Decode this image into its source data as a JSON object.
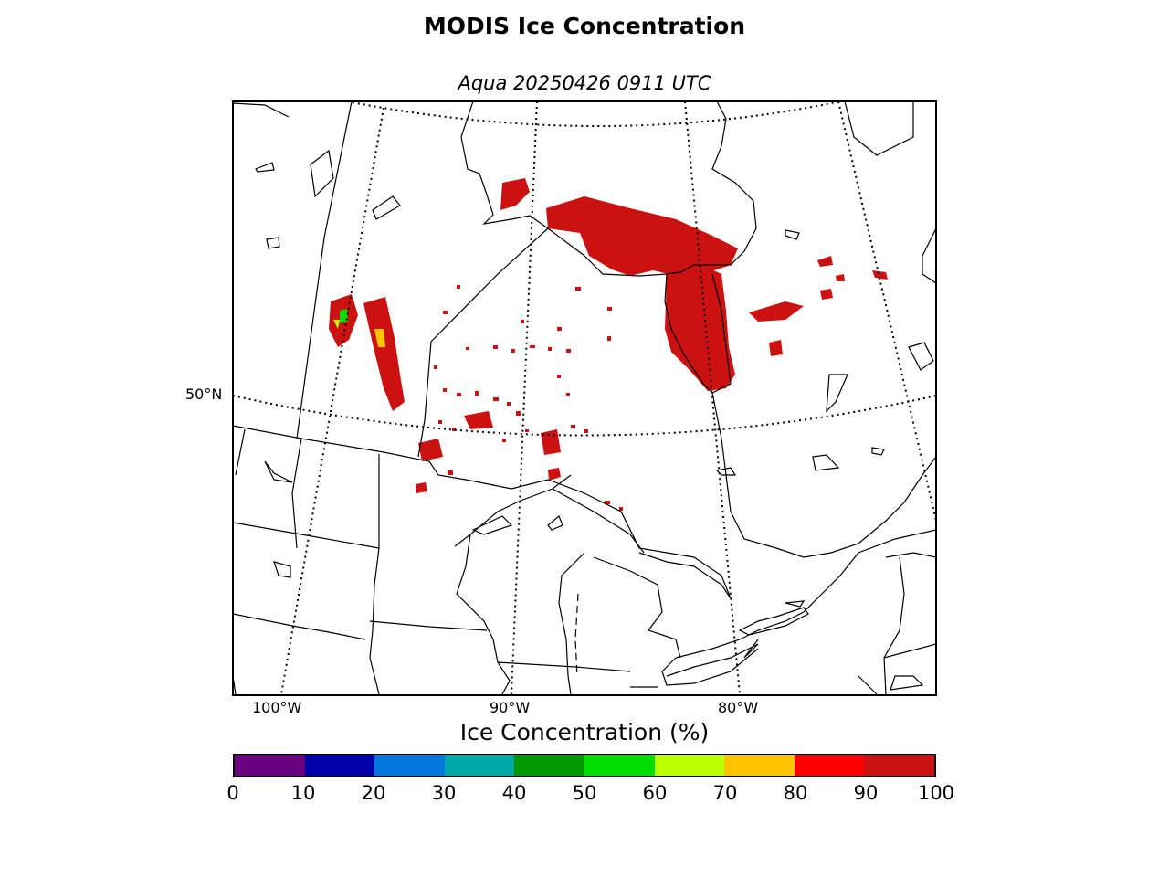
{
  "title": "MODIS Ice Concentration",
  "subtitle": "Aqua 20250426 0911 UTC",
  "map": {
    "lat_labels": [
      {
        "text": "50°N",
        "lat": 50
      }
    ],
    "lon_labels": [
      {
        "text": "100°W",
        "lon": -100
      },
      {
        "text": "90°W",
        "lon": -90
      },
      {
        "text": "80°W",
        "lon": -80
      }
    ],
    "gridlines": "dotted",
    "features": [
      "coastlines",
      "country-borders",
      "state-province-borders",
      "lakes"
    ]
  },
  "colorbar": {
    "label": "Ice Concentration (%)",
    "ticks": [
      "0",
      "10",
      "20",
      "30",
      "40",
      "50",
      "60",
      "70",
      "80",
      "90",
      "100"
    ],
    "colors": [
      "#6a0080",
      "#0000aa",
      "#0077dd",
      "#00aaaa",
      "#009900",
      "#00dd00",
      "#bbff00",
      "#ffc400",
      "#ff0000",
      "#cc1111"
    ]
  }
}
